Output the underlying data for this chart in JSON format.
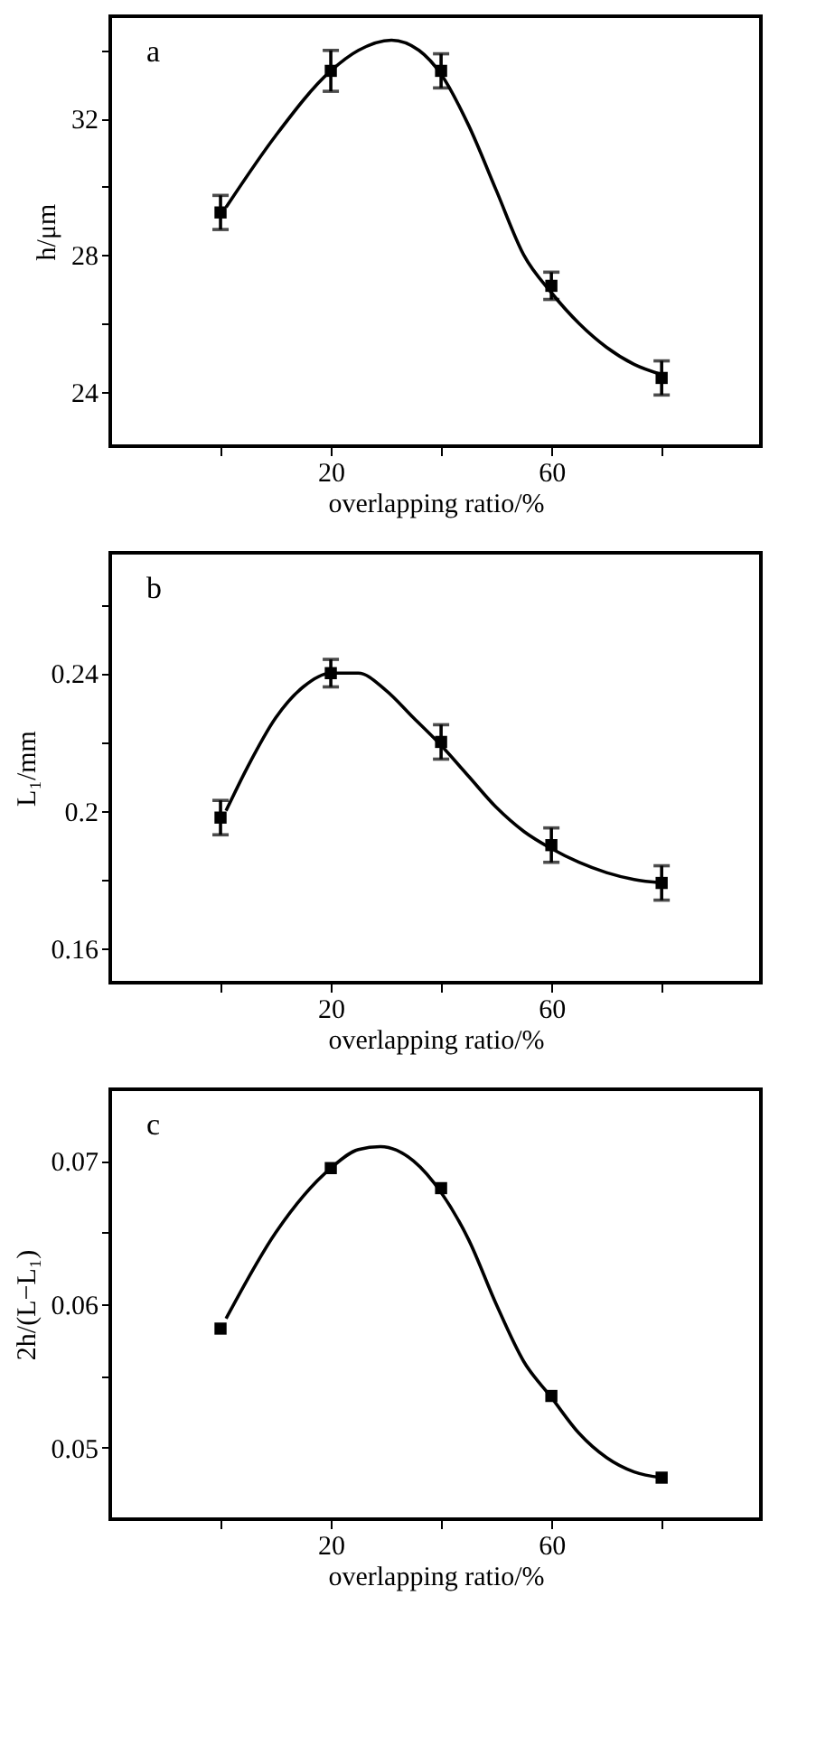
{
  "chart_data": [
    {
      "type": "scatter",
      "xlabel": "overlapping ratio/%",
      "ylabel": "h/μm",
      "annotations": [
        "a"
      ],
      "xlim": [
        -20,
        98
      ],
      "xticks": [
        {
          "value": 0,
          "label": null
        },
        20,
        {
          "value": 40,
          "label": null
        },
        60,
        {
          "value": 80,
          "label": null
        }
      ],
      "ylim": [
        22.4,
        35.0
      ],
      "yticks": [
        24,
        {
          "value": 26,
          "label": null
        },
        28,
        {
          "value": 30,
          "label": null
        },
        32,
        {
          "value": 34,
          "label": null
        }
      ],
      "series": [
        {
          "marker": "square",
          "color": "#000000",
          "x": [
            0,
            20,
            40,
            60,
            80
          ],
          "values": [
            29.25,
            33.4,
            33.4,
            27.1,
            24.4
          ],
          "errors": [
            0.5,
            0.6,
            0.5,
            0.4,
            0.5
          ]
        },
        {
          "type": "line",
          "color": "#000000",
          "x": [
            1,
            10,
            20,
            25,
            31,
            36,
            40,
            45,
            50,
            55,
            60,
            65,
            70,
            75,
            80
          ],
          "values": [
            29.4,
            31.5,
            33.4,
            34.0,
            34.3,
            34.0,
            33.3,
            31.8,
            29.9,
            28.0,
            26.9,
            26.0,
            25.3,
            24.8,
            24.5
          ]
        }
      ]
    },
    {
      "type": "scatter",
      "xlabel": "overlapping ratio/%",
      "ylabel": "L₁/mm",
      "annotations": [
        "b"
      ],
      "xlim": [
        -20,
        98
      ],
      "xticks": [
        {
          "value": 0,
          "label": null
        },
        20,
        {
          "value": 40,
          "label": null
        },
        60,
        {
          "value": 80,
          "label": null
        }
      ],
      "ylim": [
        0.15,
        0.275
      ],
      "yticks": [
        0.16,
        {
          "value": 0.18,
          "label": null
        },
        0.2,
        {
          "value": 0.22,
          "label": null
        },
        0.24,
        {
          "value": 0.26,
          "label": null
        }
      ],
      "series": [
        {
          "marker": "square",
          "color": "#000000",
          "x": [
            0,
            20,
            40,
            60,
            80
          ],
          "values": [
            0.198,
            0.24,
            0.22,
            0.19,
            0.179
          ],
          "errors": [
            0.005,
            0.004,
            0.005,
            0.005,
            0.005
          ]
        },
        {
          "type": "line",
          "color": "#000000",
          "x": [
            1,
            5,
            10,
            15,
            20,
            25,
            30,
            35,
            40,
            45,
            50,
            55,
            60,
            65,
            70,
            75,
            80
          ],
          "values": [
            0.2,
            0.213,
            0.227,
            0.236,
            0.24,
            0.24,
            0.235,
            0.227,
            0.219,
            0.21,
            0.201,
            0.194,
            0.189,
            0.185,
            0.182,
            0.18,
            0.179
          ]
        }
      ]
    },
    {
      "type": "scatter",
      "xlabel": "overlapping ratio/%",
      "ylabel": "2h/(L−L₁)",
      "annotations": [
        "c"
      ],
      "xlim": [
        -20,
        98
      ],
      "xticks": [
        {
          "value": 0,
          "label": null
        },
        20,
        {
          "value": 40,
          "label": null
        },
        60,
        {
          "value": 80,
          "label": null
        }
      ],
      "ylim": [
        0.045,
        0.075
      ],
      "yticks": [
        0.05,
        {
          "value": 0.055,
          "label": null
        },
        0.06,
        {
          "value": 0.065,
          "label": null
        },
        0.07
      ],
      "series": [
        {
          "marker": "square",
          "color": "#000000",
          "x": [
            0,
            20,
            40,
            60,
            80
          ],
          "values": [
            0.0583,
            0.0695,
            0.0681,
            0.0536,
            0.0479
          ]
        },
        {
          "type": "line",
          "color": "#000000",
          "x": [
            1,
            10,
            20,
            25,
            29,
            35,
            40,
            45,
            50,
            55,
            60,
            65,
            70,
            75,
            80
          ],
          "values": [
            0.059,
            0.065,
            0.0695,
            0.0708,
            0.071,
            0.07,
            0.0678,
            0.0645,
            0.06,
            0.056,
            0.0535,
            0.051,
            0.0493,
            0.0483,
            0.0479
          ]
        }
      ]
    }
  ]
}
